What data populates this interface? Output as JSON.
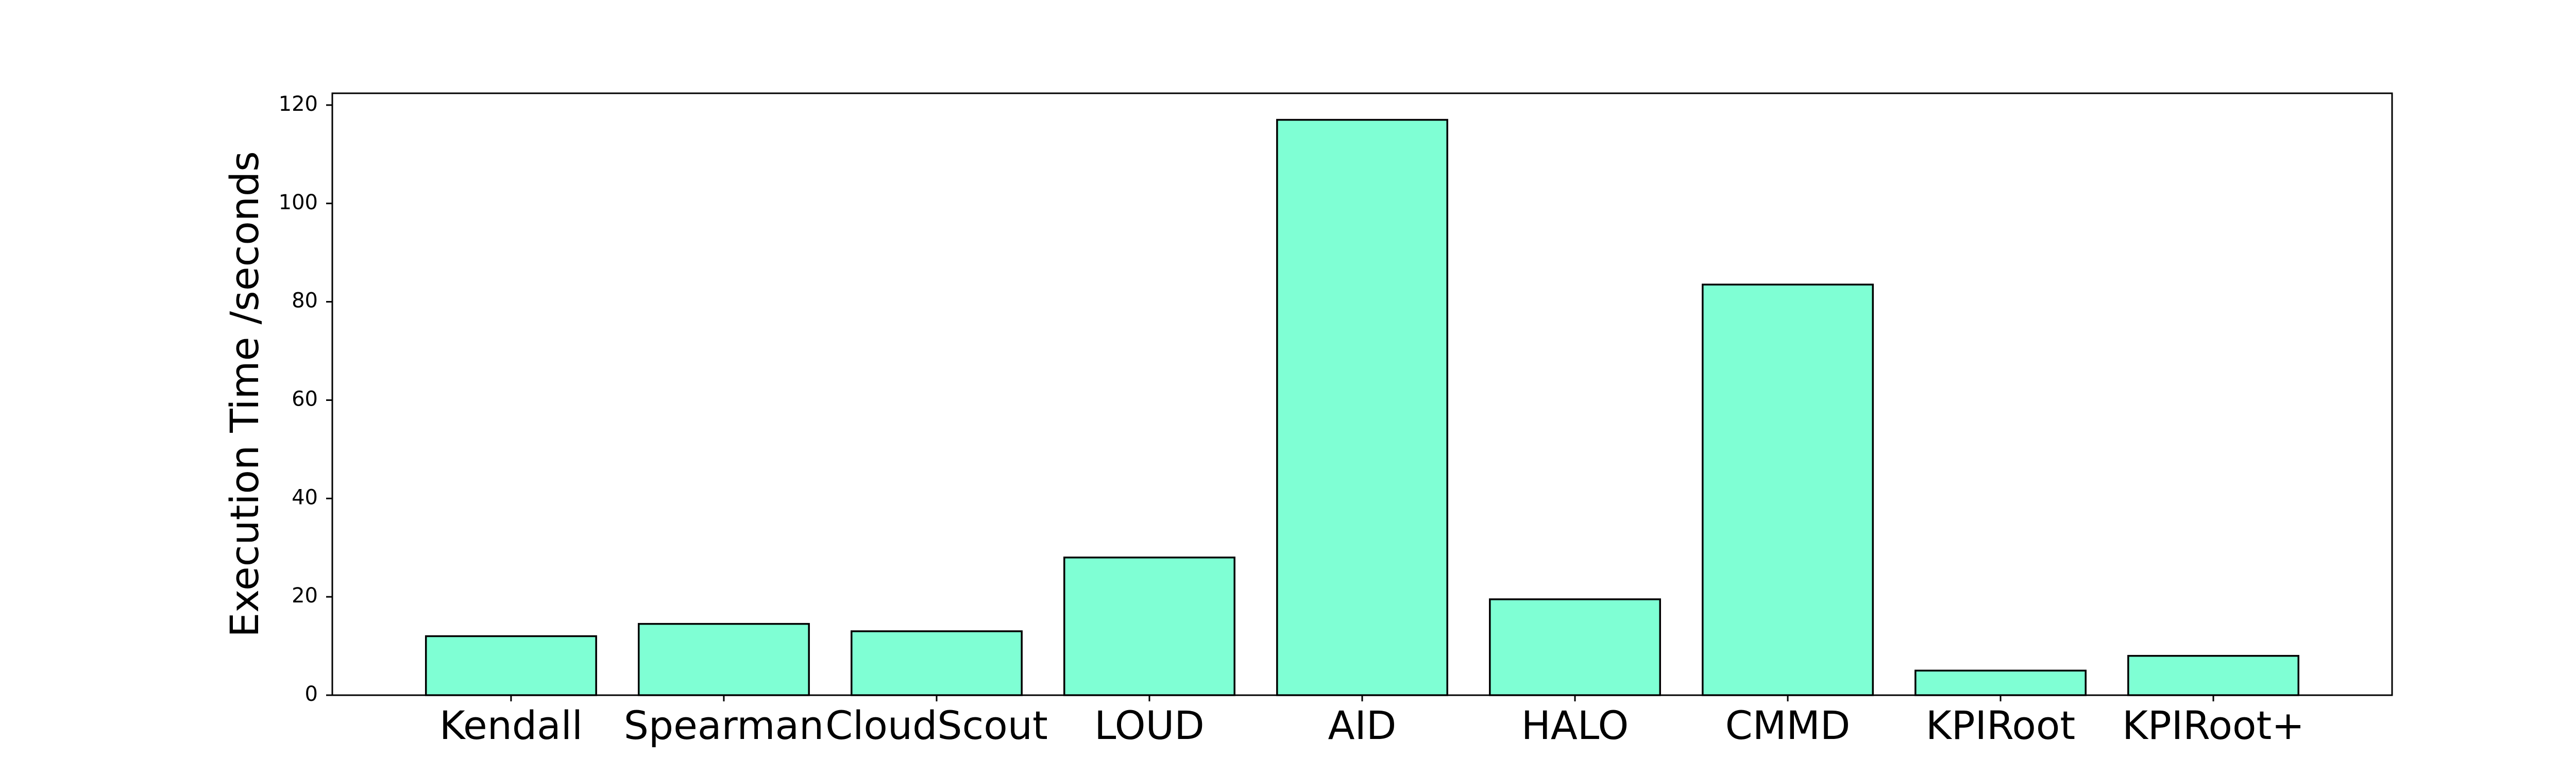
{
  "chart_data": {
    "type": "bar",
    "y_label": "Execution Time /seconds",
    "categories": [
      "Kendall",
      "Spearman",
      "CloudScout",
      "LOUD",
      "AID",
      "HALO",
      "CMMD",
      "KPIRoot",
      "KPIRoot+"
    ],
    "values": [
      12,
      14.5,
      13,
      28,
      117,
      19.5,
      83.5,
      5,
      8
    ],
    "color": "#7fffd4",
    "edge_color": "#000000",
    "ylim": [
      0,
      122.4
    ],
    "yticks": [
      0,
      20,
      40,
      60,
      80,
      100,
      120
    ],
    "grid": false
  }
}
